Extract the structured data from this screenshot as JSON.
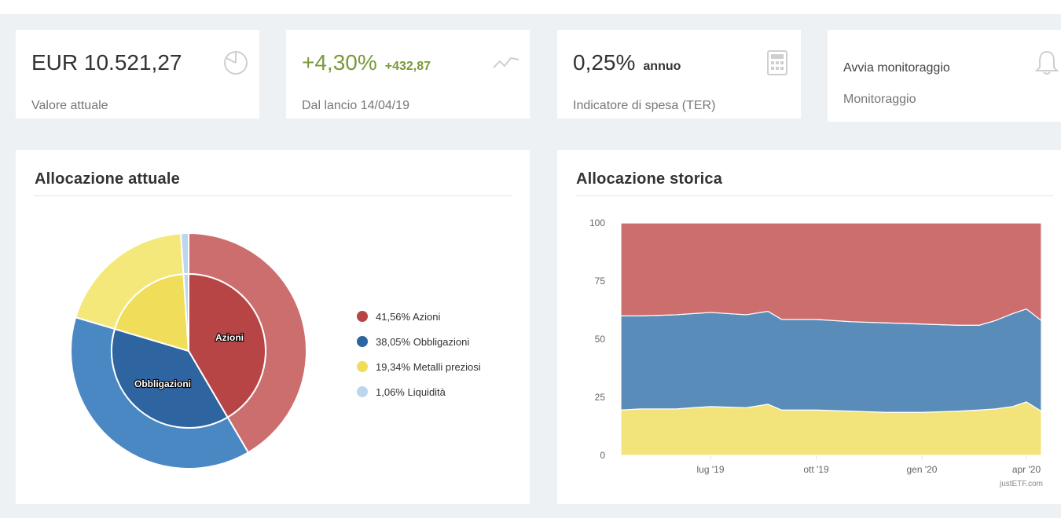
{
  "kpis": {
    "value": {
      "amount": "EUR 10.521,27",
      "label": "Valore attuale",
      "icon": "pie-chart-icon"
    },
    "performance": {
      "percent": "+4,30%",
      "absolute": "+432,87",
      "label": "Dal lancio 14/04/19",
      "icon": "trend-line-icon"
    },
    "ter": {
      "percent": "0,25%",
      "unit": "annuo",
      "label": "Indicatore di spesa (TER)",
      "icon": "calculator-icon"
    },
    "alert": {
      "action": "Avvia monitoraggio",
      "label": "Monitoraggio",
      "icon": "bell-icon"
    }
  },
  "current_allocation": {
    "title": "Allocazione attuale",
    "slice_labels": {
      "azioni": "Azioni",
      "obbligazioni": "Obbligazioni"
    },
    "legend": [
      {
        "label": "41,56% Azioni",
        "color": "#b84545"
      },
      {
        "label": "38,05% Obbligazioni",
        "color": "#2e64a0"
      },
      {
        "label": "19,34% Metalli preziosi",
        "color": "#f0de5a"
      },
      {
        "label": "1,06% Liquidità",
        "color": "#bcd6ee"
      }
    ]
  },
  "historical_allocation": {
    "title": "Allocazione storica",
    "watermark": "justETF.com"
  },
  "colors": {
    "azioni": "#b84545",
    "azioni_outer": "#cd6e6e",
    "obbligazioni": "#2e64a0",
    "obbligazioni_outer": "#4a88c4",
    "metalli": "#f0de5a",
    "metalli_outer": "#f5e87a",
    "liquidita": "#bcd6ee",
    "accent_green": "#7a9a3a"
  },
  "chart_data": [
    {
      "type": "pie",
      "title": "Allocazione attuale",
      "categories": [
        "Azioni",
        "Obbligazioni",
        "Metalli preziosi",
        "Liquidità"
      ],
      "values": [
        41.56,
        38.05,
        19.34,
        1.06
      ],
      "colors": [
        "#b84545",
        "#2e64a0",
        "#f0de5a",
        "#bcd6ee"
      ],
      "legend": "right"
    },
    {
      "type": "area",
      "title": "Allocazione storica",
      "stacked": true,
      "x_ticks": [
        "lug '19",
        "ott '19",
        "gen '20",
        "apr '20"
      ],
      "y_ticks": [
        "0",
        "25",
        "50",
        "75",
        "100"
      ],
      "ylim": [
        0,
        100
      ],
      "x": [
        "2019-04-14",
        "2019-05-01",
        "2019-06-01",
        "2019-07-01",
        "2019-08-01",
        "2019-08-20",
        "2019-09-01",
        "2019-10-01",
        "2019-11-01",
        "2019-12-01",
        "2020-01-01",
        "2020-02-01",
        "2020-02-20",
        "2020-03-05",
        "2020-03-20",
        "2020-04-01",
        "2020-04-14"
      ],
      "series": [
        {
          "name": "Metalli preziosi",
          "color": "#f2e47a",
          "values": [
            19.5,
            20,
            20,
            21,
            20.5,
            22,
            19.5,
            19.5,
            19,
            18.5,
            18.5,
            19,
            19.5,
            20,
            21,
            23,
            19
          ]
        },
        {
          "name": "Obbligazioni",
          "color": "#5a8cba",
          "values": [
            40.5,
            40,
            40.5,
            40.5,
            40,
            40,
            39,
            39,
            38.5,
            38.5,
            38,
            37,
            36.5,
            38,
            40,
            40,
            39
          ]
        },
        {
          "name": "Azioni",
          "color": "#cd6e6e",
          "values": [
            40,
            40,
            39.5,
            38.5,
            39.5,
            38,
            41.5,
            41.5,
            42.5,
            43,
            43.5,
            44,
            44,
            42,
            39,
            37,
            42
          ]
        }
      ]
    }
  ]
}
